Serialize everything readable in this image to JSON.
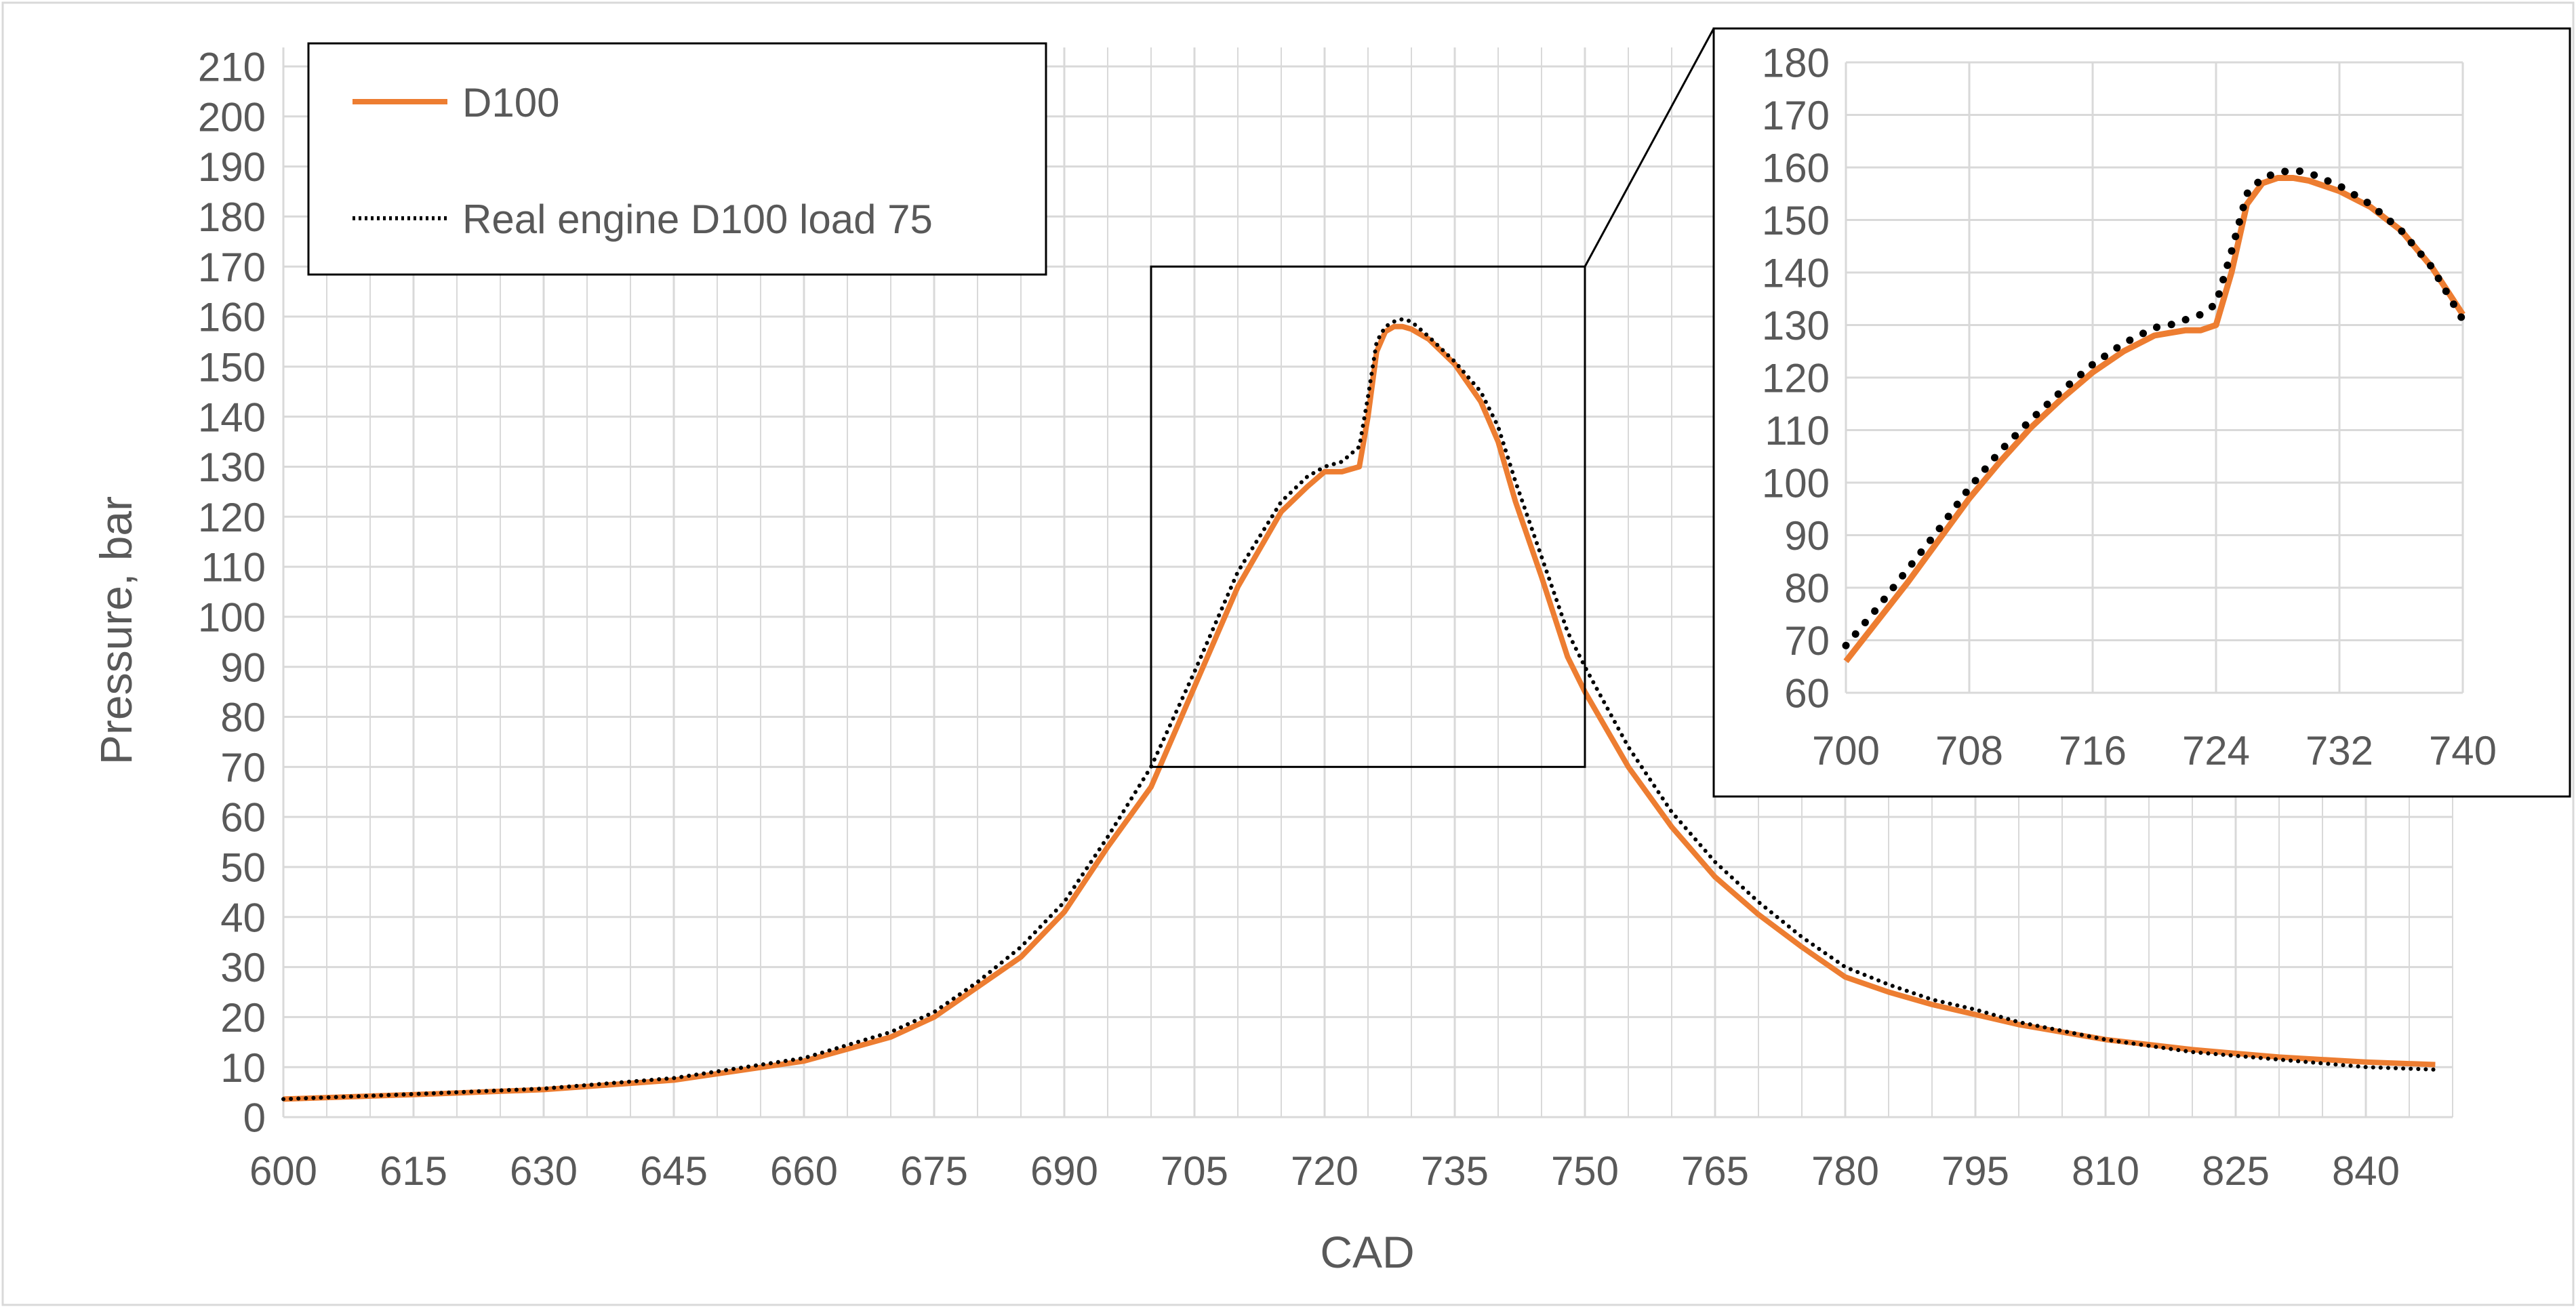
{
  "chart_data": [
    {
      "type": "line",
      "title": "",
      "xlabel": "CAD",
      "ylabel": "Pressure, bar",
      "xlim": [
        600,
        850
      ],
      "ylim": [
        0,
        215
      ],
      "x_ticks": [
        600,
        615,
        630,
        645,
        660,
        675,
        690,
        705,
        720,
        735,
        750,
        765,
        780,
        795,
        810,
        825,
        840
      ],
      "x_tick_labels": [
        "600",
        "615",
        "630",
        "645",
        "660",
        "675",
        "690",
        "705",
        "720",
        "735",
        "750",
        "765",
        "780",
        "795",
        "810",
        "825",
        "840"
      ],
      "y_ticks": [
        0,
        10,
        20,
        30,
        40,
        50,
        60,
        70,
        80,
        90,
        100,
        110,
        120,
        130,
        140,
        150,
        160,
        170,
        180,
        190,
        200,
        210
      ],
      "y_tick_labels": [
        "0",
        "10",
        "20",
        "30",
        "40",
        "50",
        "60",
        "70",
        "80",
        "90",
        "100",
        "110",
        "120",
        "130",
        "140",
        "150",
        "160",
        "170",
        "180",
        "190",
        "200",
        "210"
      ],
      "grid": true,
      "legend_position": "top-left",
      "zoom_region": {
        "x": [
          700,
          750
        ],
        "y": [
          70,
          170
        ]
      },
      "series": [
        {
          "name": "D100",
          "color": "#ed7d31",
          "style": "solid",
          "x": [
            600,
            615,
            630,
            645,
            660,
            670,
            675,
            680,
            685,
            690,
            695,
            700,
            705,
            710,
            715,
            718,
            720,
            722,
            724,
            725,
            726,
            727,
            728,
            729,
            730,
            732,
            735,
            738,
            740,
            742,
            745,
            748,
            750,
            755,
            760,
            765,
            770,
            775,
            780,
            785,
            790,
            795,
            800,
            810,
            820,
            830,
            840,
            848
          ],
          "y": [
            3.6,
            4.5,
            5.5,
            7.4,
            11.2,
            16,
            20,
            26,
            32,
            41,
            54,
            66,
            86,
            106,
            121,
            126,
            129,
            129,
            130,
            140,
            153,
            157,
            158,
            158,
            157.5,
            155.5,
            150.5,
            143,
            135,
            123,
            108,
            92,
            85,
            70,
            58,
            48,
            40.5,
            34,
            28,
            25,
            22.5,
            20.5,
            18.5,
            15.5,
            13.5,
            12,
            11,
            10.5
          ]
        },
        {
          "name": "Real engine D100 load 75",
          "color": "#000000",
          "style": "dotted",
          "x": [
            600,
            615,
            630,
            645,
            660,
            670,
            675,
            680,
            685,
            690,
            695,
            700,
            705,
            710,
            715,
            718,
            720,
            722,
            724,
            725,
            726,
            727,
            728,
            729,
            730,
            732,
            735,
            738,
            740,
            742,
            745,
            748,
            750,
            755,
            760,
            765,
            770,
            775,
            780,
            785,
            790,
            795,
            800,
            810,
            820,
            830,
            840,
            848
          ],
          "y": [
            3.6,
            4.6,
            5.7,
            7.8,
            11.8,
            17,
            21,
            27,
            34,
            43,
            56,
            70,
            89,
            109,
            123,
            128,
            130,
            131,
            134,
            144,
            155,
            158,
            159,
            159.5,
            159,
            156,
            151,
            145,
            138,
            127,
            112,
            97,
            90,
            74,
            61,
            51,
            43,
            36,
            30,
            26.5,
            23.5,
            21.5,
            19,
            15.5,
            13,
            11.5,
            10,
            9.5
          ]
        }
      ]
    },
    {
      "type": "line",
      "title": "",
      "xlabel": "",
      "ylabel": "",
      "xlim": [
        700,
        740
      ],
      "ylim": [
        60,
        180
      ],
      "x_ticks": [
        700,
        708,
        716,
        724,
        732,
        740
      ],
      "x_tick_labels": [
        "700",
        "708",
        "716",
        "724",
        "732",
        "740"
      ],
      "y_ticks": [
        60,
        70,
        80,
        90,
        100,
        110,
        120,
        130,
        140,
        150,
        160,
        170,
        180
      ],
      "y_tick_labels": [
        "60",
        "70",
        "80",
        "90",
        "100",
        "110",
        "120",
        "130",
        "140",
        "150",
        "160",
        "170",
        "180"
      ],
      "grid": true,
      "series": [
        {
          "name": "D100",
          "color": "#ed7d31",
          "style": "solid",
          "x": [
            700,
            702,
            704,
            706,
            708,
            710,
            712,
            714,
            716,
            718,
            720,
            721,
            722,
            723,
            724,
            725,
            726,
            727,
            728,
            729,
            730,
            732,
            734,
            736,
            738,
            740
          ],
          "y": [
            66,
            73.5,
            81,
            89,
            97,
            104,
            110.5,
            116,
            121,
            125,
            128,
            128.5,
            129,
            129,
            130,
            140,
            153,
            157,
            158,
            158,
            157.5,
            155.5,
            152.5,
            148,
            141,
            132
          ]
        },
        {
          "name": "Real engine D100 load 75",
          "color": "#000000",
          "style": "dotted",
          "x": [
            700,
            702,
            704,
            706,
            708,
            710,
            712,
            714,
            716,
            718,
            720,
            721,
            722,
            723,
            724,
            725,
            726,
            727,
            728,
            729,
            730,
            732,
            734,
            736,
            738,
            740
          ],
          "y": [
            69,
            76,
            83.5,
            91,
            99,
            106,
            112,
            117.5,
            122.5,
            126.5,
            129.5,
            130,
            131,
            132,
            134,
            144,
            155,
            158,
            159,
            159.5,
            159,
            156.5,
            153,
            148,
            141,
            131
          ]
        }
      ]
    }
  ],
  "legend": {
    "items": [
      {
        "label": "D100",
        "color": "#ed7d31",
        "style": "solid"
      },
      {
        "label": "Real engine D100 load 75",
        "color": "#000000",
        "style": "dotted"
      }
    ]
  },
  "colors": {
    "grid": "#d9d9d9",
    "text": "#595959",
    "frame": "#000000"
  }
}
